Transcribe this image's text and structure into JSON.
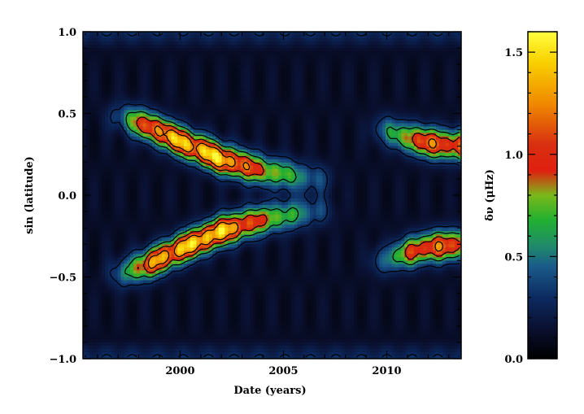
{
  "chart_data": {
    "type": "heatmap",
    "title": "",
    "xlabel": "Date (years)",
    "ylabel": "sin (latitude)",
    "colorbar_label": "δν (μHz)",
    "xlim": [
      1995.3,
      2013.6
    ],
    "ylim": [
      -1.0,
      1.0
    ],
    "x_ticks": [
      2000,
      2005,
      2010
    ],
    "y_ticks": [
      1.0,
      0.5,
      0.0,
      -0.5,
      -1.0
    ],
    "y_tick_labels": [
      "1.0",
      "0.5",
      "0.0",
      "−0.5",
      "−1.0"
    ],
    "colorbar_range": [
      0.0,
      1.6
    ],
    "colorbar_ticks": [
      0.0,
      0.5,
      1.0,
      1.5
    ],
    "colorbar_tick_labels": [
      "0.0",
      "0.5",
      "1.0",
      "1.5"
    ],
    "colormap": [
      {
        "value": 0.0,
        "color": "#000000"
      },
      {
        "value": 0.15,
        "color": "#0a1030"
      },
      {
        "value": 0.3,
        "color": "#0c2a60"
      },
      {
        "value": 0.45,
        "color": "#1a5a8a"
      },
      {
        "value": 0.55,
        "color": "#1f8a6a"
      },
      {
        "value": 0.68,
        "color": "#22b030"
      },
      {
        "value": 0.8,
        "color": "#7ab81a"
      },
      {
        "value": 0.92,
        "color": "#e02010"
      },
      {
        "value": 1.05,
        "color": "#d83010"
      },
      {
        "value": 1.25,
        "color": "#f08a00"
      },
      {
        "value": 1.45,
        "color": "#f8d000"
      },
      {
        "value": 1.6,
        "color": "#ffff40"
      }
    ],
    "contour_levels": [
      0.3,
      0.6,
      0.9,
      1.2
    ],
    "features": [
      {
        "label": "cycle 23 north band",
        "t": [
          1997.0,
          1998.5,
          2000.0,
          2002.0,
          2004.0,
          2006.5
        ],
        "lat": [
          0.48,
          0.42,
          0.33,
          0.22,
          0.15,
          0.1
        ],
        "amp": [
          0.25,
          1.1,
          1.3,
          1.35,
          0.8,
          0.3
        ]
      },
      {
        "label": "cycle 23 south band",
        "t": [
          1997.0,
          1998.5,
          2000.0,
          2002.0,
          2004.0,
          2006.5
        ],
        "lat": [
          -0.48,
          -0.42,
          -0.33,
          -0.22,
          -0.15,
          -0.1
        ],
        "amp": [
          0.25,
          1.1,
          1.3,
          1.35,
          0.8,
          0.3
        ]
      },
      {
        "label": "cycle 24 north band",
        "t": [
          2009.8,
          2011.0,
          2012.0,
          2013.6
        ],
        "lat": [
          0.4,
          0.35,
          0.32,
          0.3
        ],
        "amp": [
          0.3,
          0.8,
          1.05,
          0.95
        ]
      },
      {
        "label": "cycle 24 south band",
        "t": [
          2009.8,
          2011.0,
          2012.0,
          2013.6
        ],
        "lat": [
          -0.4,
          -0.35,
          -0.32,
          -0.3
        ],
        "amp": [
          0.3,
          0.8,
          1.05,
          0.95
        ]
      }
    ]
  }
}
